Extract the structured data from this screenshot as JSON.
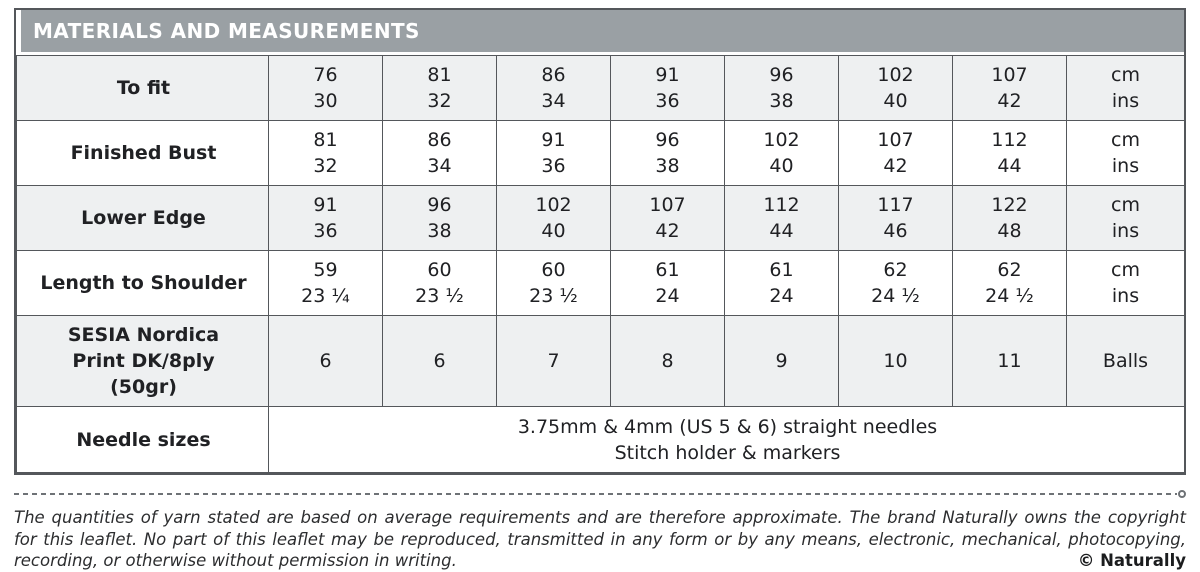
{
  "table": {
    "header": "MATERIALS AND MEASUREMENTS",
    "rows": [
      {
        "label": "To fit",
        "cells": [
          {
            "top": "76",
            "bottom": "30"
          },
          {
            "top": "81",
            "bottom": "32"
          },
          {
            "top": "86",
            "bottom": "34"
          },
          {
            "top": "91",
            "bottom": "36"
          },
          {
            "top": "96",
            "bottom": "38"
          },
          {
            "top": "102",
            "bottom": "40"
          },
          {
            "top": "107",
            "bottom": "42"
          }
        ],
        "unit": {
          "top": "cm",
          "bottom": "ins"
        }
      },
      {
        "label": "Finished Bust",
        "cells": [
          {
            "top": "81",
            "bottom": "32"
          },
          {
            "top": "86",
            "bottom": "34"
          },
          {
            "top": "91",
            "bottom": "36"
          },
          {
            "top": "96",
            "bottom": "38"
          },
          {
            "top": "102",
            "bottom": "40"
          },
          {
            "top": "107",
            "bottom": "42"
          },
          {
            "top": "112",
            "bottom": "44"
          }
        ],
        "unit": {
          "top": "cm",
          "bottom": "ins"
        }
      },
      {
        "label": "Lower Edge",
        "cells": [
          {
            "top": "91",
            "bottom": "36"
          },
          {
            "top": "96",
            "bottom": "38"
          },
          {
            "top": "102",
            "bottom": "40"
          },
          {
            "top": "107",
            "bottom": "42"
          },
          {
            "top": "112",
            "bottom": "44"
          },
          {
            "top": "117",
            "bottom": "46"
          },
          {
            "top": "122",
            "bottom": "48"
          }
        ],
        "unit": {
          "top": "cm",
          "bottom": "ins"
        }
      },
      {
        "label": "Length to Shoulder",
        "cells": [
          {
            "top": "59",
            "bottom": "23 ¼"
          },
          {
            "top": "60",
            "bottom": "23 ½"
          },
          {
            "top": "60",
            "bottom": "23 ½"
          },
          {
            "top": "61",
            "bottom": "24"
          },
          {
            "top": "61",
            "bottom": "24"
          },
          {
            "top": "62",
            "bottom": "24 ½"
          },
          {
            "top": "62",
            "bottom": "24 ½"
          }
        ],
        "unit": {
          "top": "cm",
          "bottom": "ins"
        }
      }
    ],
    "yarn_row": {
      "label": "SESIA Nordica\nPrint DK/8ply\n(50gr)",
      "cells": [
        "6",
        "6",
        "7",
        "8",
        "9",
        "10",
        "11"
      ],
      "unit": "Balls"
    },
    "needle_row": {
      "label": "Needle sizes",
      "line1": "3.75mm & 4mm (US 5 & 6) straight needles",
      "line2": "Stitch holder & markers"
    }
  },
  "footer": {
    "line1": "The quantities of yarn stated are based on average requirements and are therefore approximate. The brand Naturally owns the copyright",
    "line2": "for this leaflet. No part of this leaflet may be reproduced, transmitted in any form or by any means, electronic, mechanical, photocopying,",
    "line3": "recording, or otherwise without permission in writing.",
    "copyright": "© Naturally"
  },
  "colors": {
    "header_bg": "#9aa0a4",
    "header_text": "#ffffff",
    "shaded_row_bg": "#eef0f1",
    "border": "#54575b",
    "body_text": "#202124"
  }
}
